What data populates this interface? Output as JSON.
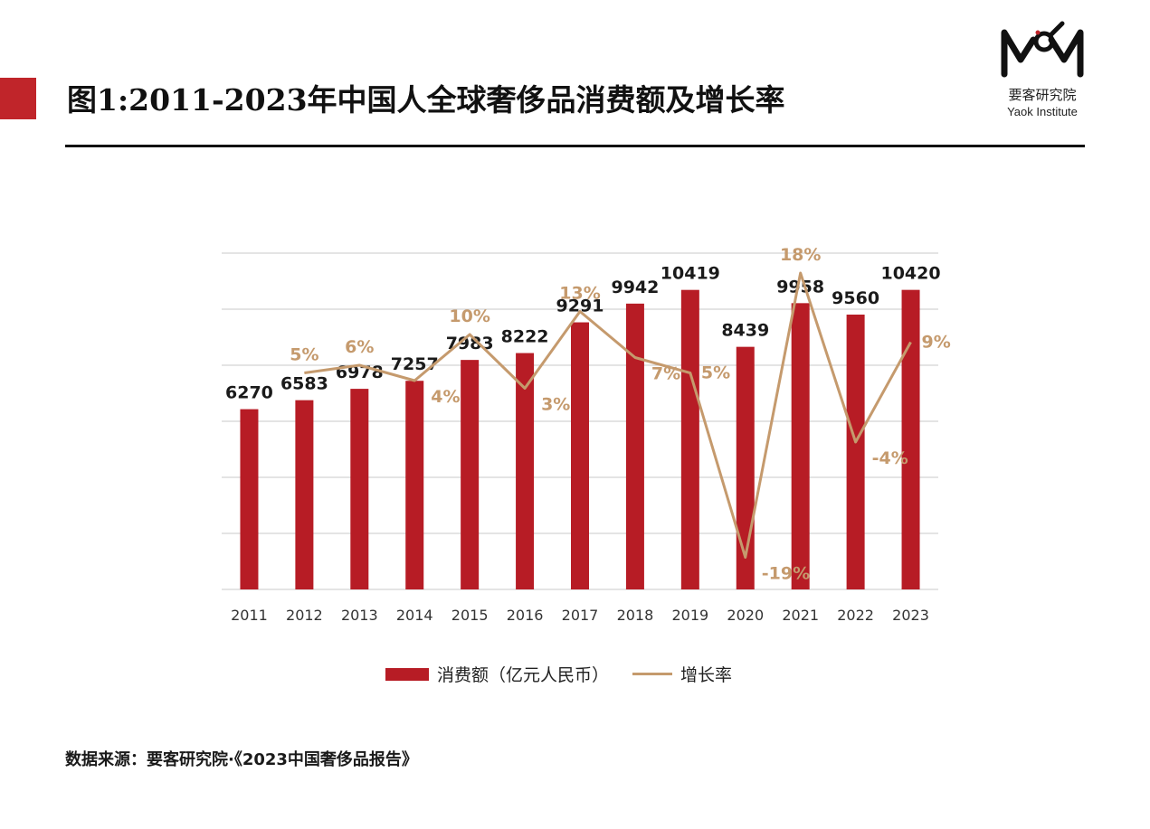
{
  "header": {
    "title": "图1:2011-2023年中国人全球奢侈品消费额及增长率",
    "logo_cn": "要客研究院",
    "logo_en": "Yaok Institute"
  },
  "legend": {
    "bar_label": "消费额（亿元人民币）",
    "line_label": "增长率"
  },
  "source": "数据来源：要客研究院·《2023中国奢侈品报告》",
  "colors": {
    "bar": "#b71c25",
    "line": "#c59a6d",
    "accent": "#c0252a",
    "grid": "#c8c8c8"
  },
  "chart_data": {
    "type": "bar+line",
    "title": "2011-2023年中国人全球奢侈品消费额及增长率",
    "categories": [
      "2011",
      "2012",
      "2013",
      "2014",
      "2015",
      "2016",
      "2017",
      "2018",
      "2019",
      "2020",
      "2021",
      "2022",
      "2023"
    ],
    "series": [
      {
        "name": "消费额（亿元人民币）",
        "type": "bar",
        "values": [
          6270,
          6583,
          6978,
          7257,
          7983,
          8222,
          9291,
          9942,
          10419,
          8439,
          9958,
          9560,
          10420
        ],
        "labels": [
          "6270",
          "6583",
          "6978",
          "7257",
          "7983",
          "8222",
          "9291",
          "9942",
          "10419",
          "8439",
          "9958",
          "9560",
          "10420"
        ]
      },
      {
        "name": "增长率",
        "type": "line",
        "values": [
          null,
          5,
          6,
          4,
          10,
          3,
          13,
          7,
          5,
          -19,
          18,
          -4,
          9
        ],
        "labels": [
          null,
          "5%",
          "6%",
          "4%",
          "10%",
          "3%",
          "13%",
          "7%",
          "5%",
          "-19%",
          "18%",
          "-4%",
          "9%"
        ]
      }
    ],
    "ylim_bar": [
      0,
      12000
    ],
    "ylim_line": [
      -20,
      20
    ],
    "grid": true,
    "legend_position": "bottom"
  }
}
